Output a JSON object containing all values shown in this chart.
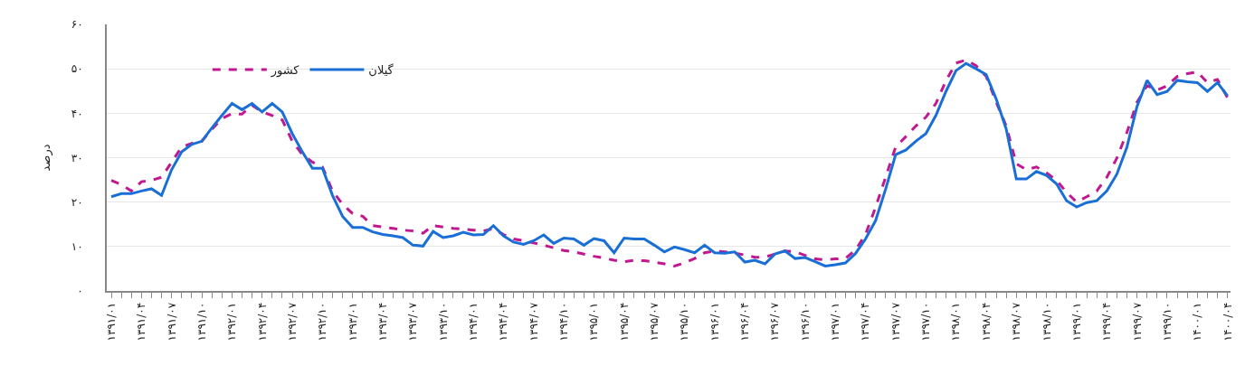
{
  "chart_data": {
    "type": "line",
    "ylabel": "درصد",
    "categories": [
      "۱۳۹۱/۰۱",
      null,
      null,
      "۱۳۹۱/۰۴",
      null,
      null,
      "۱۳۹۱/۰۷",
      null,
      null,
      "۱۳۹۱/۱۰",
      null,
      null,
      "۱۳۹۲/۰۱",
      null,
      null,
      "۱۳۹۲/۰۴",
      null,
      null,
      "۱۳۹۲/۰۷",
      null,
      null,
      "۱۳۹۲/۱۰",
      null,
      null,
      "۱۳۹۳/۰۱",
      null,
      null,
      "۱۳۹۳/۰۴",
      null,
      null,
      "۱۳۹۳/۰۷",
      null,
      null,
      "۱۳۹۳/۱۰",
      null,
      null,
      "۱۳۹۴/۰۱",
      null,
      null,
      "۱۳۹۴/۰۴",
      null,
      null,
      "۱۳۹۴/۰۷",
      null,
      null,
      "۱۳۹۴/۱۰",
      null,
      null,
      "۱۳۹۵/۰۱",
      null,
      null,
      "۱۳۹۵/۰۴",
      null,
      null,
      "۱۳۹۵/۰۷",
      null,
      null,
      "۱۳۹۵/۱۰",
      null,
      null,
      "۱۳۹۶/۰۱",
      null,
      null,
      "۱۳۹۶/۰۴",
      null,
      null,
      "۱۳۹۶/۰۷",
      null,
      null,
      "۱۳۹۶/۱۰",
      null,
      null,
      "۱۳۹۷/۰۱",
      null,
      null,
      "۱۳۹۷/۰۴",
      null,
      null,
      "۱۳۹۷/۰۷",
      null,
      null,
      "۱۳۹۷/۱۰",
      null,
      null,
      "۱۳۹۸/۰۱",
      null,
      null,
      "۱۳۹۸/۰۴",
      null,
      null,
      "۱۳۹۸/۰۷",
      null,
      null,
      "۱۳۹۸/۱۰",
      null,
      null,
      "۱۳۹۹/۰۱",
      null,
      null,
      "۱۳۹۹/۰۴",
      null,
      null,
      "۱۳۹۹/۰۷",
      null,
      null,
      "۱۳۹۹/۱۰",
      null,
      null,
      "۱۴۰۰/۰۱",
      null,
      null,
      "۱۴۰۰/۰۴"
    ],
    "series": [
      {
        "name": "کشور",
        "color": "#c2188f",
        "line_style": "dashed",
        "values": [
          24.9,
          23.9,
          22.5,
          24.6,
          24.9,
          25.6,
          29.0,
          32.4,
          33.2,
          33.7,
          36.4,
          38.8,
          39.9,
          39.8,
          41.8,
          40.3,
          39.5,
          38.5,
          33.7,
          30.7,
          29.0,
          27.9,
          22.5,
          19.5,
          17.4,
          16.8,
          14.7,
          14.4,
          14.1,
          13.7,
          13.5,
          13.0,
          14.7,
          14.4,
          14.1,
          13.9,
          13.7,
          13.5,
          14.0,
          12.7,
          11.7,
          11.3,
          10.8,
          10.3,
          9.7,
          9.1,
          8.8,
          8.3,
          7.8,
          7.4,
          6.9,
          6.6,
          6.9,
          6.8,
          6.5,
          6.1,
          5.6,
          6.3,
          7.3,
          8.6,
          9.0,
          8.8,
          8.5,
          8.1,
          7.6,
          7.6,
          8.3,
          9.0,
          8.8,
          8.0,
          7.2,
          7.0,
          7.2,
          7.3,
          9.2,
          12.7,
          18.8,
          25.6,
          32.4,
          34.7,
          37.1,
          39.1,
          42.2,
          47.3,
          51.3,
          52.0,
          50.7,
          48.3,
          42.5,
          37.1,
          28.6,
          27.3,
          27.9,
          26.6,
          24.9,
          22.2,
          20.0,
          21.2,
          22.5,
          25.6,
          29.9,
          35.7,
          42.5,
          46.2,
          45.2,
          46.2,
          48.3,
          48.9,
          49.3,
          46.9,
          47.6,
          43.5
        ]
      },
      {
        "name": "گیلان",
        "color": "#1a6fd6",
        "line_style": "solid",
        "values": [
          21.2,
          21.9,
          21.9,
          22.5,
          23.0,
          21.5,
          27.3,
          31.3,
          33.0,
          33.7,
          36.7,
          39.5,
          42.2,
          40.8,
          42.2,
          40.3,
          42.2,
          40.3,
          35.4,
          31.3,
          27.6,
          27.6,
          21.5,
          16.8,
          14.3,
          14.3,
          13.3,
          12.7,
          12.4,
          12.0,
          10.3,
          10.1,
          13.4,
          12.0,
          12.4,
          13.2,
          12.6,
          12.7,
          14.7,
          12.4,
          11.0,
          10.5,
          11.3,
          12.6,
          10.7,
          11.9,
          11.7,
          10.3,
          11.8,
          11.3,
          8.6,
          11.9,
          11.7,
          11.7,
          10.3,
          8.8,
          9.9,
          9.3,
          8.6,
          10.3,
          8.6,
          8.5,
          8.8,
          6.5,
          6.9,
          6.1,
          8.3,
          9.0,
          7.3,
          7.5,
          6.6,
          5.6,
          5.9,
          6.3,
          8.4,
          11.7,
          15.8,
          22.9,
          30.7,
          31.7,
          33.7,
          35.4,
          39.5,
          44.9,
          49.6,
          51.2,
          50.0,
          48.7,
          43.2,
          36.4,
          25.2,
          25.2,
          26.9,
          26.0,
          24.1,
          20.3,
          18.9,
          19.9,
          20.3,
          22.5,
          26.3,
          32.4,
          41.5,
          47.4,
          44.2,
          44.9,
          47.4,
          47.1,
          46.9,
          44.9,
          46.9,
          43.9
        ]
      }
    ],
    "ylim": [
      0,
      60
    ],
    "yticks": [
      {
        "value": 0,
        "label": "۰"
      },
      {
        "value": 10,
        "label": "۱۰"
      },
      {
        "value": 20,
        "label": "۲۰"
      },
      {
        "value": 30,
        "label": "۳۰"
      },
      {
        "value": 40,
        "label": "۴۰"
      },
      {
        "value": 50,
        "label": "۵۰"
      },
      {
        "value": 60,
        "label": "۶۰"
      }
    ],
    "grid": "y",
    "legend": "top left",
    "marker": "none"
  }
}
